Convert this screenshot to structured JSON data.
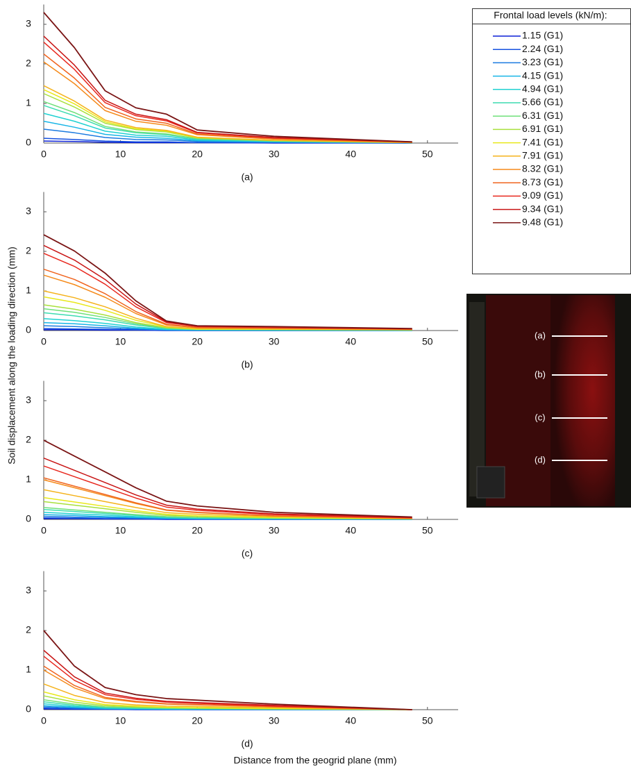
{
  "y_label": "Soil displacement along the loading direction (mm)",
  "x_label": "Distance from the geogrid plane (mm)",
  "legend": {
    "title": "Frontal load levels (kN/m):",
    "items": [
      {
        "name": "1.15 (G1)",
        "color": "#0a1fd6"
      },
      {
        "name": "2.24 (G1)",
        "color": "#1450e0"
      },
      {
        "name": "3.23 (G1)",
        "color": "#1a7ae0"
      },
      {
        "name": "4.15 (G1)",
        "color": "#17b5e6"
      },
      {
        "name": "4.94 (G1)",
        "color": "#1fd1d1"
      },
      {
        "name": "5.66 (G1)",
        "color": "#3cdcb0"
      },
      {
        "name": "6.31 (G1)",
        "color": "#6fe07a"
      },
      {
        "name": "6.91 (G1)",
        "color": "#a8e03c"
      },
      {
        "name": "7.41 (G1)",
        "color": "#e8e81a"
      },
      {
        "name": "7.91 (G1)",
        "color": "#f5b21a"
      },
      {
        "name": "8.32 (G1)",
        "color": "#f58a1a"
      },
      {
        "name": "8.73 (G1)",
        "color": "#f0641e"
      },
      {
        "name": "9.09 (G1)",
        "color": "#e8281e"
      },
      {
        "name": "9.34 (G1)",
        "color": "#c81414"
      },
      {
        "name": "9.48 (G1)",
        "color": "#7a1414"
      }
    ]
  },
  "photo": {
    "labels": [
      "(a)",
      "(b)",
      "(c)",
      "(d)"
    ]
  },
  "chart_data": [
    {
      "type": "line",
      "caption": "(a)",
      "x": [
        0,
        4,
        8,
        12,
        16,
        20,
        30,
        48
      ],
      "xlim": [
        0,
        54
      ],
      "ylim": [
        0,
        3.5
      ],
      "xticks": [
        0,
        10,
        20,
        30,
        40,
        50
      ],
      "yticks": [
        0,
        1,
        2,
        3
      ],
      "series": [
        {
          "values": [
            0.05,
            0.04,
            0.02,
            0.01,
            0.01,
            0.01,
            0,
            0
          ]
        },
        {
          "values": [
            0.12,
            0.09,
            0.05,
            0.03,
            0.03,
            0.01,
            0.01,
            0
          ]
        },
        {
          "values": [
            0.35,
            0.26,
            0.14,
            0.09,
            0.08,
            0.04,
            0.02,
            0
          ]
        },
        {
          "values": [
            0.55,
            0.4,
            0.22,
            0.15,
            0.12,
            0.06,
            0.03,
            0.01
          ]
        },
        {
          "values": [
            0.75,
            0.55,
            0.3,
            0.2,
            0.17,
            0.08,
            0.04,
            0.01
          ]
        },
        {
          "values": [
            0.95,
            0.69,
            0.38,
            0.26,
            0.21,
            0.1,
            0.05,
            0.01
          ]
        },
        {
          "values": [
            1.05,
            0.77,
            0.42,
            0.28,
            0.23,
            0.11,
            0.05,
            0.01
          ]
        },
        {
          "values": [
            1.25,
            0.91,
            0.5,
            0.34,
            0.28,
            0.13,
            0.06,
            0.01
          ]
        },
        {
          "values": [
            1.35,
            0.99,
            0.54,
            0.36,
            0.3,
            0.14,
            0.07,
            0.01
          ]
        },
        {
          "values": [
            1.45,
            1.06,
            0.58,
            0.39,
            0.32,
            0.15,
            0.07,
            0.01
          ]
        },
        {
          "values": [
            2.05,
            1.5,
            0.82,
            0.55,
            0.45,
            0.21,
            0.1,
            0.02
          ]
        },
        {
          "values": [
            2.25,
            1.64,
            0.9,
            0.61,
            0.5,
            0.23,
            0.11,
            0.02
          ]
        },
        {
          "values": [
            2.55,
            1.86,
            1.02,
            0.69,
            0.56,
            0.26,
            0.13,
            0.03
          ]
        },
        {
          "values": [
            2.7,
            1.97,
            1.08,
            0.73,
            0.59,
            0.27,
            0.14,
            0.03
          ]
        },
        {
          "values": [
            3.3,
            2.41,
            1.32,
            0.89,
            0.73,
            0.33,
            0.17,
            0.03
          ]
        }
      ]
    },
    {
      "type": "line",
      "caption": "(b)",
      "x": [
        0,
        4,
        8,
        12,
        16,
        20,
        30,
        48
      ],
      "xlim": [
        0,
        54
      ],
      "ylim": [
        0,
        3.5
      ],
      "xticks": [
        0,
        10,
        20,
        30,
        40,
        50
      ],
      "yticks": [
        0,
        1,
        2,
        3
      ],
      "series": [
        {
          "values": [
            0.02,
            0.02,
            0.01,
            0.01,
            0,
            0,
            0,
            0
          ]
        },
        {
          "values": [
            0.05,
            0.04,
            0.03,
            0.02,
            0.01,
            0,
            0,
            0
          ]
        },
        {
          "values": [
            0.12,
            0.1,
            0.07,
            0.04,
            0.01,
            0.01,
            0,
            0
          ]
        },
        {
          "values": [
            0.2,
            0.17,
            0.12,
            0.06,
            0.02,
            0.01,
            0.01,
            0
          ]
        },
        {
          "values": [
            0.3,
            0.25,
            0.18,
            0.09,
            0.03,
            0.02,
            0.01,
            0.01
          ]
        },
        {
          "values": [
            0.45,
            0.37,
            0.27,
            0.14,
            0.05,
            0.02,
            0.02,
            0.01
          ]
        },
        {
          "values": [
            0.55,
            0.46,
            0.33,
            0.17,
            0.06,
            0.03,
            0.02,
            0.01
          ]
        },
        {
          "values": [
            0.65,
            0.54,
            0.39,
            0.2,
            0.07,
            0.03,
            0.03,
            0.01
          ]
        },
        {
          "values": [
            0.85,
            0.71,
            0.51,
            0.26,
            0.09,
            0.04,
            0.03,
            0.02
          ]
        },
        {
          "values": [
            1,
            0.83,
            0.6,
            0.31,
            0.1,
            0.05,
            0.04,
            0.02
          ]
        },
        {
          "values": [
            1.4,
            1.16,
            0.84,
            0.43,
            0.14,
            0.07,
            0.06,
            0.03
          ]
        },
        {
          "values": [
            1.55,
            1.29,
            0.93,
            0.48,
            0.16,
            0.08,
            0.06,
            0.03
          ]
        },
        {
          "values": [
            1.95,
            1.62,
            1.17,
            0.6,
            0.2,
            0.1,
            0.08,
            0.04
          ]
        },
        {
          "values": [
            2.15,
            1.78,
            1.29,
            0.67,
            0.22,
            0.11,
            0.09,
            0.04
          ]
        },
        {
          "values": [
            2.42,
            2.01,
            1.45,
            0.75,
            0.24,
            0.12,
            0.1,
            0.05
          ]
        }
      ]
    },
    {
      "type": "line",
      "caption": "(c)",
      "x": [
        0,
        4,
        8,
        12,
        16,
        20,
        30,
        48
      ],
      "xlim": [
        0,
        54
      ],
      "ylim": [
        0,
        3.5
      ],
      "xticks": [
        0,
        10,
        20,
        30,
        40,
        50
      ],
      "yticks": [
        0,
        1,
        2,
        3
      ],
      "series": [
        {
          "values": [
            0.02,
            0.02,
            0.01,
            0.01,
            0,
            0,
            0,
            0
          ]
        },
        {
          "values": [
            0.04,
            0.03,
            0.02,
            0.02,
            0.01,
            0.01,
            0,
            0
          ]
        },
        {
          "values": [
            0.08,
            0.06,
            0.05,
            0.03,
            0.02,
            0.01,
            0.01,
            0
          ]
        },
        {
          "values": [
            0.12,
            0.1,
            0.07,
            0.05,
            0.03,
            0.02,
            0.01,
            0
          ]
        },
        {
          "values": [
            0.18,
            0.14,
            0.11,
            0.07,
            0.04,
            0.03,
            0.02,
            0.01
          ]
        },
        {
          "values": [
            0.25,
            0.2,
            0.15,
            0.1,
            0.06,
            0.04,
            0.02,
            0.01
          ]
        },
        {
          "values": [
            0.3,
            0.24,
            0.18,
            0.12,
            0.07,
            0.05,
            0.03,
            0.01
          ]
        },
        {
          "values": [
            0.45,
            0.36,
            0.27,
            0.18,
            0.1,
            0.08,
            0.04,
            0.01
          ]
        },
        {
          "values": [
            0.55,
            0.44,
            0.33,
            0.22,
            0.13,
            0.09,
            0.05,
            0.02
          ]
        },
        {
          "values": [
            0.75,
            0.6,
            0.45,
            0.3,
            0.17,
            0.13,
            0.07,
            0.02
          ]
        },
        {
          "values": [
            1,
            0.8,
            0.6,
            0.4,
            0.23,
            0.17,
            0.09,
            0.03
          ]
        },
        {
          "values": [
            1.05,
            0.84,
            0.63,
            0.42,
            0.24,
            0.18,
            0.09,
            0.03
          ]
        },
        {
          "values": [
            1.35,
            1.08,
            0.81,
            0.54,
            0.31,
            0.23,
            0.12,
            0.04
          ]
        },
        {
          "values": [
            1.55,
            1.24,
            0.93,
            0.62,
            0.36,
            0.26,
            0.14,
            0.05
          ]
        },
        {
          "values": [
            2,
            1.6,
            1.2,
            0.8,
            0.46,
            0.34,
            0.18,
            0.06
          ]
        }
      ]
    },
    {
      "type": "line",
      "caption": "(d)",
      "x": [
        0,
        4,
        8,
        12,
        16,
        20,
        30,
        48
      ],
      "xlim": [
        0,
        54
      ],
      "ylim": [
        0,
        3.5
      ],
      "xticks": [
        0,
        10,
        20,
        30,
        40,
        50
      ],
      "yticks": [
        0,
        1,
        2,
        3
      ],
      "series": [
        {
          "values": [
            0.02,
            0.01,
            0.01,
            0,
            0,
            0,
            0,
            0
          ]
        },
        {
          "values": [
            0.04,
            0.02,
            0.01,
            0.01,
            0.01,
            0,
            0,
            0
          ]
        },
        {
          "values": [
            0.07,
            0.04,
            0.02,
            0.01,
            0.01,
            0.01,
            0,
            0
          ]
        },
        {
          "values": [
            0.1,
            0.06,
            0.03,
            0.02,
            0.01,
            0.01,
            0.01,
            0
          ]
        },
        {
          "values": [
            0.15,
            0.08,
            0.04,
            0.03,
            0.02,
            0.02,
            0.01,
            0
          ]
        },
        {
          "values": [
            0.2,
            0.11,
            0.06,
            0.04,
            0.03,
            0.02,
            0.01,
            0
          ]
        },
        {
          "values": [
            0.25,
            0.14,
            0.07,
            0.05,
            0.04,
            0.03,
            0.02,
            0
          ]
        },
        {
          "values": [
            0.35,
            0.19,
            0.1,
            0.07,
            0.05,
            0.04,
            0.02,
            0
          ]
        },
        {
          "values": [
            0.45,
            0.25,
            0.13,
            0.09,
            0.06,
            0.05,
            0.03,
            0
          ]
        },
        {
          "values": [
            0.65,
            0.36,
            0.18,
            0.12,
            0.09,
            0.08,
            0.05,
            0
          ]
        },
        {
          "values": [
            1,
            0.55,
            0.28,
            0.19,
            0.14,
            0.12,
            0.07,
            0
          ]
        },
        {
          "values": [
            1.1,
            0.61,
            0.31,
            0.21,
            0.15,
            0.13,
            0.08,
            0
          ]
        },
        {
          "values": [
            1.35,
            0.74,
            0.38,
            0.26,
            0.19,
            0.16,
            0.09,
            0
          ]
        },
        {
          "values": [
            1.5,
            0.83,
            0.42,
            0.29,
            0.21,
            0.18,
            0.11,
            0
          ]
        },
        {
          "values": [
            2,
            1.1,
            0.56,
            0.38,
            0.28,
            0.24,
            0.14,
            0
          ]
        }
      ]
    }
  ]
}
